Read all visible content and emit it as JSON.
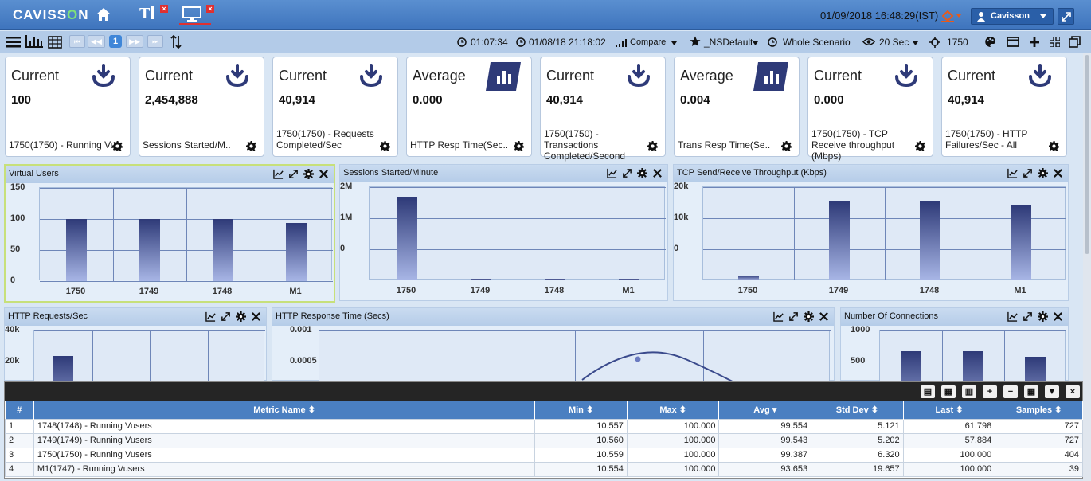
{
  "app": {
    "logo_left": "CAVISS",
    "logo_o": "O",
    "logo_right": "N",
    "tab1_label": "T"
  },
  "header": {
    "datetime": "01/09/2018 16:48:29(IST)",
    "user": "Cavisson"
  },
  "toolbar": {
    "page": "1",
    "elapsed": "01:07:34",
    "start": "01/08/18 21:18:02",
    "compare": "Compare",
    "favorite": "_NSDefault",
    "scenario": "Whole Scenario",
    "interval": "20 Sec",
    "generator": "1750"
  },
  "cards": [
    {
      "label": "Current",
      "value": "100",
      "desc": "1750(1750) - Running Vusers",
      "icon": "download-icon"
    },
    {
      "label": "Current",
      "value": "2,454,888",
      "desc": "Sessions Started/M..",
      "icon": "download-icon"
    },
    {
      "label": "Current",
      "value": "40,914",
      "desc": "1750(1750) - Requests Completed/Sec",
      "icon": "download-icon"
    },
    {
      "label": "Average",
      "value": "0.000",
      "desc": "HTTP Resp Time(Sec..",
      "icon": "bar-chart-icon"
    },
    {
      "label": "Current",
      "value": "40,914",
      "desc": "1750(1750) - Transactions Completed/Second",
      "icon": "download-icon"
    },
    {
      "label": "Average",
      "value": "0.004",
      "desc": "Trans Resp Time(Se..",
      "icon": "bar-chart-icon"
    },
    {
      "label": "Current",
      "value": "0.000",
      "desc": "1750(1750) - TCP Receive throughput (Mbps)",
      "icon": "download-icon"
    },
    {
      "label": "Current",
      "value": "40,914",
      "desc": "1750(1750) - HTTP Failures/Sec - All",
      "icon": "download-icon"
    }
  ],
  "chart_data": [
    {
      "type": "bar",
      "title": "Virtual Users",
      "categories": [
        "1750",
        "1749",
        "1748",
        "M1"
      ],
      "values": [
        100,
        100,
        100,
        93
      ],
      "yticks": [
        "150",
        "100",
        "50",
        "0"
      ],
      "ylim": [
        0,
        150
      ]
    },
    {
      "type": "bar",
      "title": "Sessions Started/Minute",
      "categories": [
        "1750",
        "1749",
        "1748",
        "M1"
      ],
      "values": [
        1780000,
        0,
        0,
        0
      ],
      "yticks": [
        "2M",
        "1M",
        "0"
      ],
      "ylim": [
        0,
        2000000
      ]
    },
    {
      "type": "bar",
      "title": "TCP Send/Receive Throughput (Kbps)",
      "categories": [
        "1750",
        "1749",
        "1748",
        "M1"
      ],
      "values": [
        1000,
        17000,
        17000,
        16000
      ],
      "yticks": [
        "20k",
        "10k",
        "0"
      ],
      "ylim": [
        0,
        20000
      ]
    },
    {
      "type": "bar",
      "title": "HTTP Requests/Sec",
      "categories": [
        "1750"
      ],
      "values": [
        29000
      ],
      "yticks": [
        "40k",
        "20k"
      ],
      "ylim": [
        0,
        40000
      ]
    },
    {
      "type": "line",
      "title": "HTTP Response Time (Secs)",
      "yticks": [
        "0.001",
        "0.0005"
      ],
      "ylim": [
        0,
        0.001
      ]
    },
    {
      "type": "bar",
      "title": "Number Of Connections",
      "values": [
        780,
        780,
        720
      ],
      "yticks": [
        "1000",
        "500"
      ],
      "ylim": [
        0,
        1000
      ]
    }
  ],
  "table": {
    "headers": [
      "#",
      "Metric Name",
      "Min",
      "Max",
      "Avg",
      "Std Dev",
      "Last",
      "Samples"
    ],
    "rows": [
      [
        "1",
        "1748(1748) - Running Vusers",
        "10.557",
        "100.000",
        "99.554",
        "5.121",
        "61.798",
        "727"
      ],
      [
        "2",
        "1749(1749) - Running Vusers",
        "10.560",
        "100.000",
        "99.543",
        "5.202",
        "57.884",
        "727"
      ],
      [
        "3",
        "1750(1750) - Running Vusers",
        "10.559",
        "100.000",
        "99.387",
        "6.320",
        "100.000",
        "404"
      ],
      [
        "4",
        "M1(1747) - Running Vusers",
        "10.554",
        "100.000",
        "93.653",
        "19.657",
        "100.000",
        "39"
      ]
    ]
  }
}
